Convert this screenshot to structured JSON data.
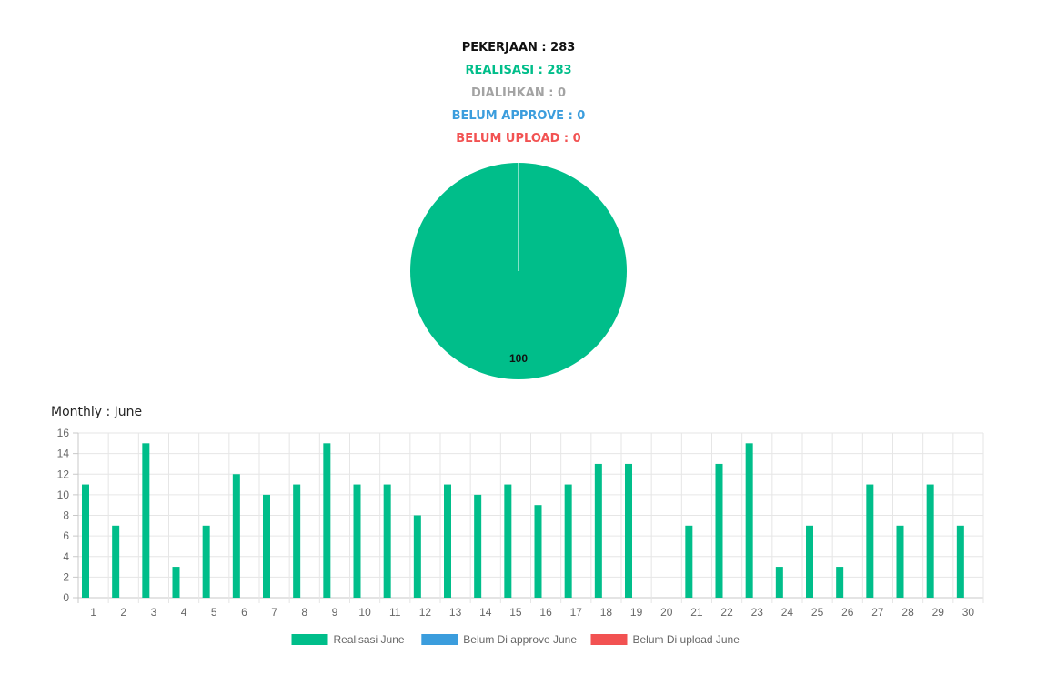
{
  "summary": {
    "pekerjaan": "PEKERJAAN : 283",
    "realisasi": "REALISASI : 283",
    "dialihkan": "DIALIHKAN : 0",
    "belum_approve": "BELUM APPROVE : 0",
    "belum_upload": "BELUM UPLOAD : 0"
  },
  "colors": {
    "pekerjaan": "#111111",
    "realisasi": "#00be8a",
    "dialihkan": "#a3a3a3",
    "belum_approve": "#3b9ddd",
    "belum_upload": "#f25252"
  },
  "chart_data": [
    {
      "type": "pie",
      "slices": [
        {
          "name": "Realisasi",
          "value": 100,
          "color": "#00be8a"
        }
      ],
      "data_labels": [
        "100"
      ]
    },
    {
      "type": "bar",
      "title": "Monthly : June",
      "categories": [
        "1",
        "2",
        "3",
        "4",
        "5",
        "6",
        "7",
        "8",
        "9",
        "10",
        "11",
        "12",
        "13",
        "14",
        "15",
        "16",
        "17",
        "18",
        "19",
        "20",
        "21",
        "22",
        "23",
        "24",
        "25",
        "26",
        "27",
        "28",
        "29",
        "30"
      ],
      "series": [
        {
          "name": "Realisasi June",
          "color": "#00be8a",
          "values": [
            11,
            7,
            15,
            3,
            7,
            12,
            10,
            11,
            15,
            11,
            11,
            8,
            11,
            10,
            11,
            9,
            11,
            13,
            13,
            0,
            7,
            13,
            15,
            3,
            7,
            3,
            11,
            7,
            11,
            7
          ]
        },
        {
          "name": "Belum Di approve June",
          "color": "#3b9ddd",
          "values": [
            0,
            0,
            0,
            0,
            0,
            0,
            0,
            0,
            0,
            0,
            0,
            0,
            0,
            0,
            0,
            0,
            0,
            0,
            0,
            0,
            0,
            0,
            0,
            0,
            0,
            0,
            0,
            0,
            0,
            0
          ]
        },
        {
          "name": "Belum Di upload June",
          "color": "#f25252",
          "values": [
            0,
            0,
            0,
            0,
            0,
            0,
            0,
            0,
            0,
            0,
            0,
            0,
            0,
            0,
            0,
            0,
            0,
            0,
            0,
            0,
            0,
            0,
            0,
            0,
            0,
            0,
            0,
            0,
            0,
            0
          ]
        }
      ],
      "yticks": [
        "0",
        "2",
        "4",
        "6",
        "8",
        "10",
        "12",
        "14",
        "16"
      ],
      "ylim": [
        0,
        16
      ],
      "grid": true,
      "legend": "bottom"
    }
  ]
}
